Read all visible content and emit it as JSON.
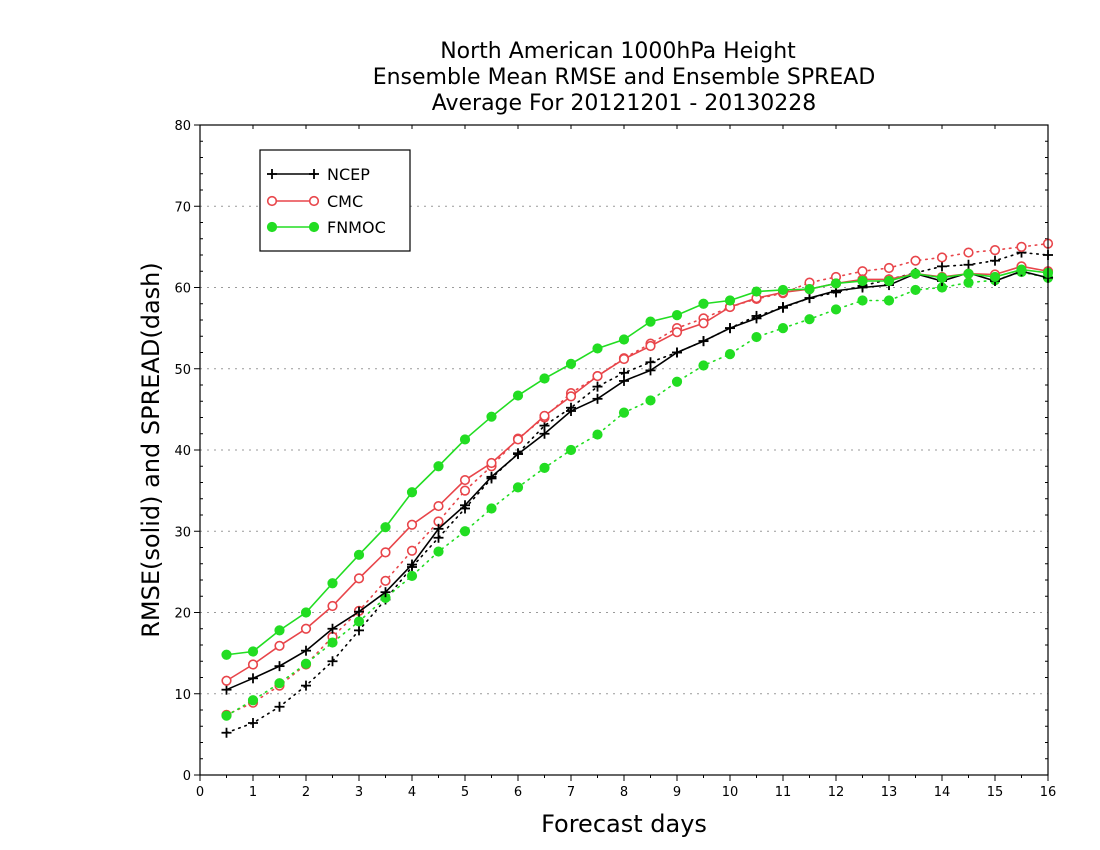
{
  "chart_data": {
    "type": "line",
    "title_lines": [
      "North American 1000hPa Height",
      "Ensemble Mean RMSE and Ensemble SPREAD",
      "Average For 20121201 - 20130228"
    ],
    "xlabel": "Forecast days",
    "ylabel": "RMSE(solid) and SPREAD(dash)",
    "xlim": [
      0,
      16
    ],
    "ylim": [
      0,
      80
    ],
    "x_ticks": [
      "0",
      "1",
      "2",
      "3",
      "4",
      "5",
      "6",
      "7",
      "8",
      "9",
      "10",
      "11",
      "12",
      "13",
      "14",
      "15",
      "16"
    ],
    "y_ticks": [
      "0",
      "10",
      "20",
      "30",
      "40",
      "50",
      "60",
      "70",
      "80"
    ],
    "grid": "horizontal dotted",
    "legend_position": "top-left",
    "legend": [
      "NCEP",
      "CMC",
      "FNMOC"
    ],
    "x": [
      0.5,
      1,
      1.5,
      2,
      2.5,
      3,
      3.5,
      4,
      4.5,
      5,
      5.5,
      6,
      6.5,
      7,
      7.5,
      8,
      8.5,
      9,
      9.5,
      10,
      10.5,
      11,
      11.5,
      12,
      12.5,
      13,
      13.5,
      14,
      14.5,
      15,
      15.5,
      16
    ],
    "series": [
      {
        "name": "NCEP",
        "kind": "rmse",
        "color": "#000000",
        "marker": "plus",
        "values": [
          10.5,
          11.9,
          13.4,
          15.3,
          18.0,
          20.1,
          22.5,
          25.9,
          30.3,
          33.2,
          36.7,
          39.5,
          42.0,
          44.8,
          46.3,
          48.5,
          49.8,
          52.0,
          53.4,
          55.0,
          56.2,
          57.6,
          58.7,
          59.6,
          60.0,
          60.3,
          61.7,
          60.8,
          61.8,
          60.8,
          62.0,
          61.2
        ]
      },
      {
        "name": "CMC",
        "kind": "rmse",
        "color": "#e8454a",
        "marker": "open-circle",
        "values": [
          11.6,
          13.6,
          15.9,
          18.0,
          20.8,
          24.2,
          27.4,
          30.8,
          33.1,
          36.3,
          38.4,
          41.3,
          44.2,
          46.6,
          49.1,
          51.2,
          52.8,
          54.5,
          55.6,
          57.6,
          58.7,
          59.4,
          59.8,
          60.5,
          61.0,
          61.0,
          61.7,
          61.3,
          61.7,
          61.6,
          62.6,
          62.0
        ]
      },
      {
        "name": "FNMOC",
        "kind": "rmse",
        "color": "#22dd22",
        "marker": "filled-circle",
        "values": [
          14.8,
          15.2,
          17.8,
          20.0,
          23.6,
          27.1,
          30.5,
          34.8,
          38.0,
          41.3,
          44.1,
          46.7,
          48.8,
          50.6,
          52.5,
          53.6,
          55.8,
          56.6,
          58.0,
          58.4,
          59.5,
          59.7,
          59.8,
          60.5,
          60.8,
          60.8,
          61.7,
          61.2,
          61.7,
          61.3,
          62.2,
          61.8
        ]
      },
      {
        "name": "NCEP",
        "kind": "spread",
        "color": "#000000",
        "marker": "plus",
        "values": [
          5.2,
          6.4,
          8.4,
          11.0,
          14.0,
          17.8,
          21.6,
          25.6,
          29.2,
          32.8,
          36.5,
          39.6,
          43.0,
          45.2,
          47.8,
          49.5,
          50.8,
          52.0,
          53.4,
          55.0,
          56.5,
          57.5,
          58.7,
          59.4,
          60.2,
          61.0,
          61.8,
          62.6,
          62.8,
          63.3,
          64.3,
          64.0
        ]
      },
      {
        "name": "CMC",
        "kind": "spread",
        "color": "#e8454a",
        "marker": "open-circle",
        "values": [
          7.4,
          8.9,
          11.0,
          13.6,
          17.0,
          20.2,
          23.9,
          27.6,
          31.2,
          35.0,
          38.0,
          41.4,
          44.0,
          47.0,
          49.1,
          51.3,
          53.1,
          55.0,
          56.2,
          57.6,
          58.6,
          59.3,
          60.6,
          61.3,
          62.0,
          62.4,
          63.3,
          63.7,
          64.3,
          64.6,
          65.0,
          65.4
        ]
      },
      {
        "name": "FNMOC",
        "kind": "spread",
        "color": "#22dd22",
        "marker": "filled-circle",
        "values": [
          7.3,
          9.2,
          11.3,
          13.7,
          16.3,
          18.9,
          21.8,
          24.5,
          27.5,
          30.0,
          32.8,
          35.4,
          37.8,
          40.0,
          41.9,
          44.6,
          46.1,
          48.4,
          50.4,
          51.8,
          53.9,
          55.0,
          56.1,
          57.3,
          58.4,
          58.4,
          59.7,
          60.0,
          60.6,
          60.9,
          61.9,
          61.2
        ]
      }
    ]
  }
}
